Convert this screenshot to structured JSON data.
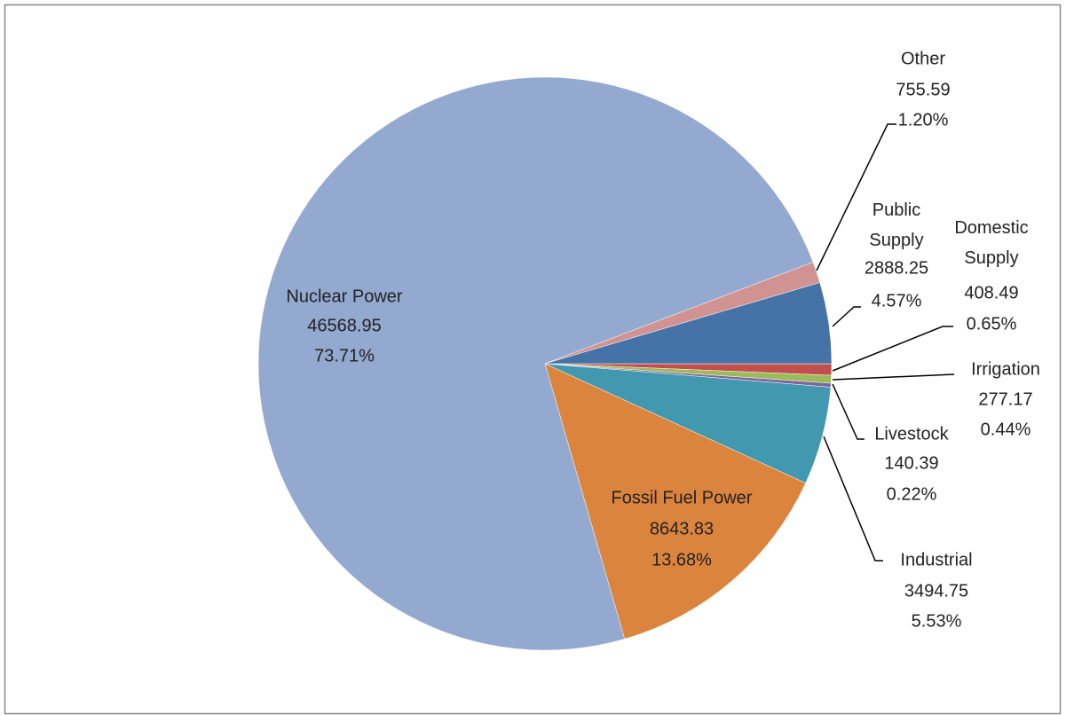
{
  "chart_data": {
    "type": "pie",
    "categories": [
      "Domestic Supply",
      "Irrigation",
      "Livestock",
      "Industrial",
      "Fossil Fuel Power",
      "Nuclear Power",
      "Other",
      "Public Supply"
    ],
    "values": [
      408.49,
      277.17,
      140.39,
      3494.75,
      8643.83,
      46568.95,
      755.59,
      2888.25
    ],
    "percents": [
      0.65,
      0.44,
      0.22,
      5.53,
      13.68,
      73.71,
      1.2,
      4.57
    ],
    "percent_labels": [
      "0.65%",
      "0.44%",
      "0.22%",
      "5.53%",
      "13.68%",
      "73.71%",
      "1.20%",
      "4.57%"
    ],
    "colors": [
      "#c0504d",
      "#9bbb59",
      "#8064a2",
      "#4198af",
      "#db843d",
      "#93a9cf",
      "#d19392",
      "#4572a7"
    ]
  }
}
